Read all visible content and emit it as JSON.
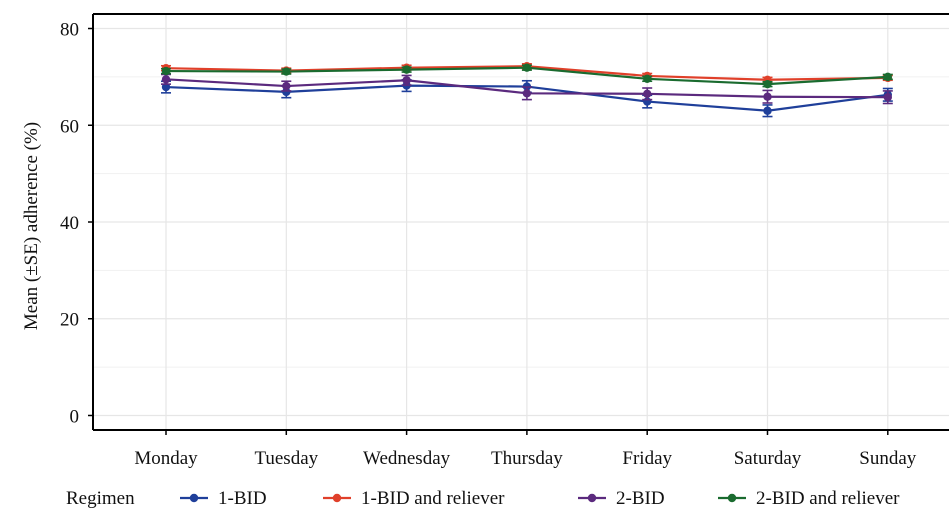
{
  "chart_data": {
    "type": "line",
    "title": "",
    "xlabel": "",
    "ylabel": "Mean (±SE) adherence (%)",
    "categories": [
      "Monday",
      "Tuesday",
      "Wednesday",
      "Thursday",
      "Friday",
      "Saturday",
      "Sunday"
    ],
    "ylim": [
      -3,
      83
    ],
    "yticks": [
      0,
      20,
      40,
      60,
      80
    ],
    "grid": true,
    "legend": {
      "title": "Regimen",
      "position": "bottom"
    },
    "series": [
      {
        "name": "1-BID",
        "color": "#1f3f9a",
        "values": [
          67.9,
          66.9,
          68.2,
          68.0,
          64.9,
          63.0,
          66.3
        ],
        "se": [
          1.2,
          1.2,
          1.2,
          1.2,
          1.3,
          1.2,
          1.3
        ]
      },
      {
        "name": "1-BID and reliever",
        "color": "#e0402a",
        "values": [
          71.8,
          71.3,
          71.9,
          72.2,
          70.2,
          69.4,
          69.8
        ],
        "se": [
          0.5,
          0.5,
          0.5,
          0.5,
          0.5,
          0.5,
          0.5
        ]
      },
      {
        "name": "2-BID",
        "color": "#5b2a7e",
        "values": [
          69.5,
          68.1,
          69.3,
          66.6,
          66.5,
          65.9,
          65.8
        ],
        "se": [
          1.0,
          1.0,
          1.0,
          1.3,
          1.2,
          1.3,
          1.3
        ]
      },
      {
        "name": "2-BID and reliever",
        "color": "#1a6b2f",
        "values": [
          71.2,
          71.1,
          71.5,
          71.9,
          69.6,
          68.5,
          70.0
        ],
        "se": [
          0.5,
          0.5,
          0.5,
          0.5,
          0.5,
          0.5,
          0.5
        ]
      }
    ]
  }
}
